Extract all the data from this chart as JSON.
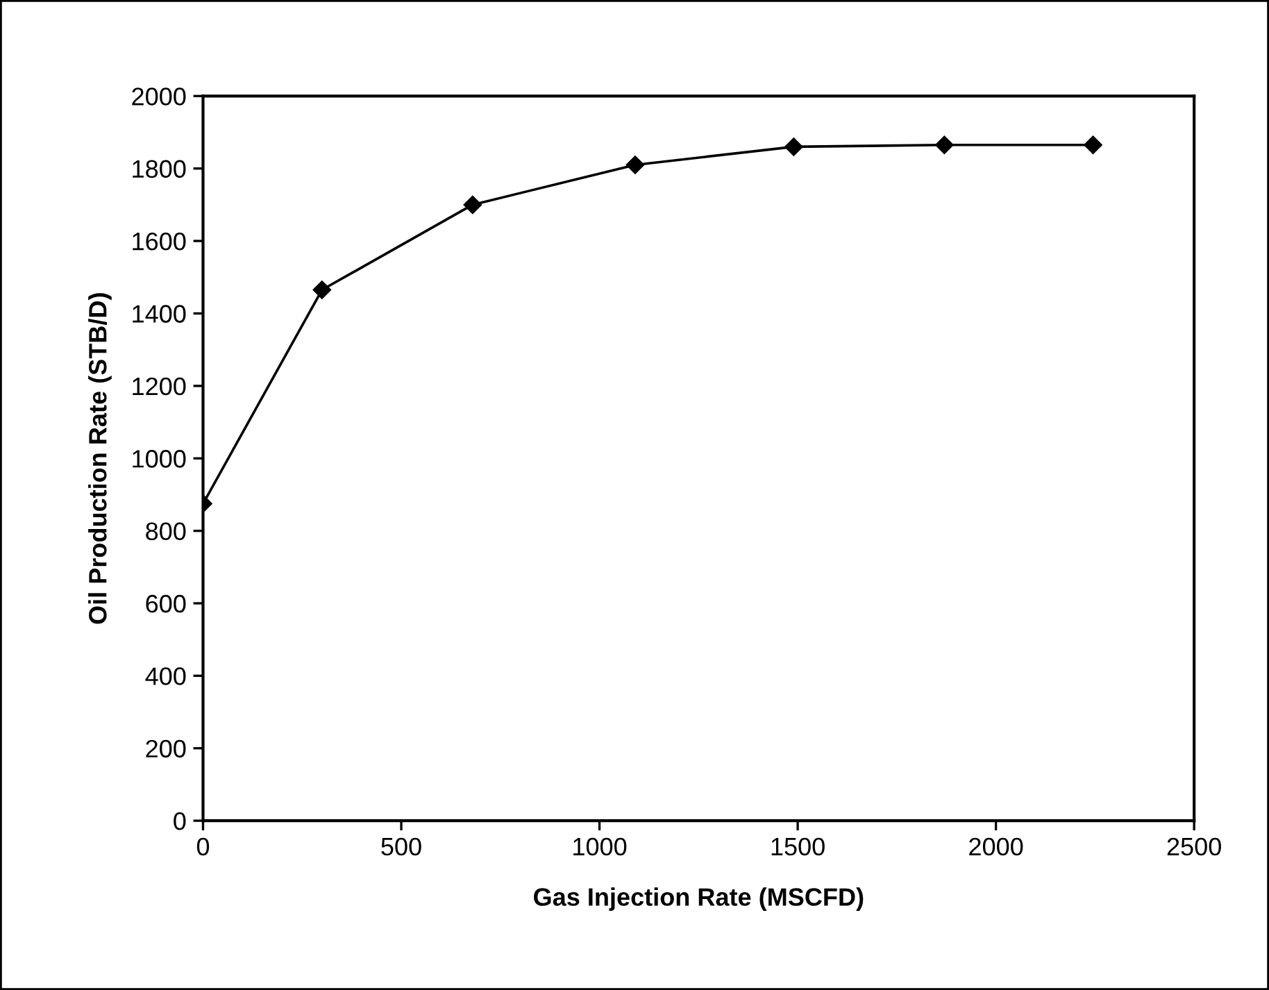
{
  "chart_data": {
    "type": "line",
    "xlabel": "Gas Injection Rate (MSCFD)",
    "ylabel": "Oil Production Rate (STB/D)",
    "x": [
      0,
      300,
      680,
      1090,
      1490,
      1870,
      2245
    ],
    "series": [
      {
        "color": "#000000",
        "values": [
          875,
          1465,
          1700,
          1810,
          1860,
          1865,
          1865
        ]
      }
    ],
    "xlim": [
      0,
      2500
    ],
    "xticks": [
      0,
      500,
      1000,
      1500,
      2000,
      2500
    ],
    "ylim": [
      0,
      2000
    ],
    "yticks": [
      0,
      200,
      400,
      600,
      800,
      1000,
      1200,
      1400,
      1600,
      1800,
      2000
    ],
    "marker": "diamond",
    "line_style": "solid",
    "grid": false
  }
}
